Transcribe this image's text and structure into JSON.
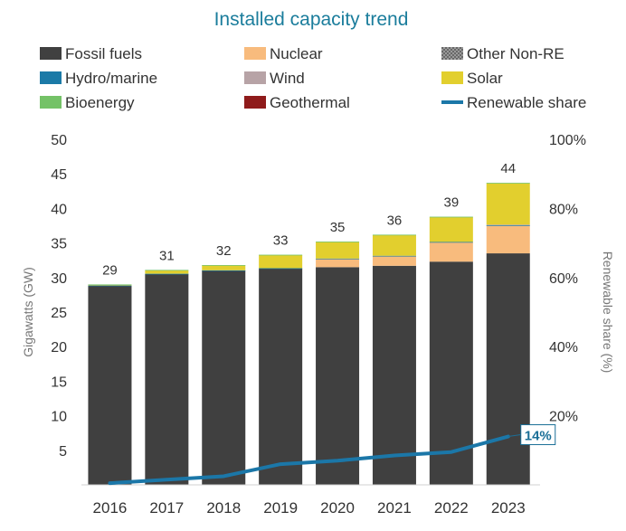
{
  "chart_data": {
    "type": "bar",
    "stacked": true,
    "title": "Installed capacity trend",
    "categories": [
      "2016",
      "2017",
      "2018",
      "2019",
      "2020",
      "2021",
      "2022",
      "2023"
    ],
    "legend": [
      {
        "name": "Fossil fuels",
        "color": "#404040",
        "kind": "box"
      },
      {
        "name": "Nuclear",
        "color": "#f8bb7d",
        "kind": "box"
      },
      {
        "name": "Other Non-RE",
        "color": "#7f7f7f",
        "kind": "hatch"
      },
      {
        "name": "Hydro/marine",
        "color": "#1b7aa7",
        "kind": "box"
      },
      {
        "name": "Wind",
        "color": "#b7a3a6",
        "kind": "box"
      },
      {
        "name": "Solar",
        "color": "#e2cf2e",
        "kind": "box"
      },
      {
        "name": "Bioenergy",
        "color": "#74c267",
        "kind": "box"
      },
      {
        "name": "Geothermal",
        "color": "#8f1b1b",
        "kind": "box"
      },
      {
        "name": "Renewable share",
        "color": "#1b77a8",
        "kind": "line"
      }
    ],
    "series": [
      {
        "name": "Fossil fuels",
        "color": "#404040",
        "values": [
          28.8,
          30.5,
          31.0,
          31.3,
          31.5,
          31.7,
          32.3,
          33.5
        ]
      },
      {
        "name": "Nuclear",
        "color": "#f8bb7d",
        "values": [
          0,
          0,
          0,
          0,
          1.2,
          1.4,
          2.8,
          4.0
        ]
      },
      {
        "name": "Other Non-RE",
        "color": "#7f7f7f",
        "values": [
          0,
          0,
          0,
          0,
          0,
          0,
          0,
          0
        ]
      },
      {
        "name": "Hydro/marine",
        "color": "#1b7aa7",
        "values": [
          0.05,
          0.05,
          0.05,
          0.05,
          0.05,
          0.05,
          0.05,
          0.05
        ]
      },
      {
        "name": "Wind",
        "color": "#b7a3a6",
        "values": [
          0,
          0,
          0,
          0,
          0,
          0,
          0,
          0.1
        ]
      },
      {
        "name": "Solar",
        "color": "#e2cf2e",
        "values": [
          0.1,
          0.5,
          0.7,
          1.9,
          2.4,
          3.0,
          3.6,
          6.0
        ]
      },
      {
        "name": "Bioenergy",
        "color": "#74c267",
        "values": [
          0.05,
          0.05,
          0.05,
          0.05,
          0.05,
          0.05,
          0.05,
          0.05
        ]
      },
      {
        "name": "Geothermal",
        "color": "#8f1b1b",
        "values": [
          0,
          0,
          0,
          0,
          0,
          0,
          0,
          0
        ]
      }
    ],
    "totals": [
      "29",
      "31",
      "32",
      "33",
      "35",
      "36",
      "39",
      "44"
    ],
    "renewable_share": {
      "name": "Renewable share",
      "color": "#1b77a8",
      "values": [
        0.5,
        1.5,
        2.5,
        6.0,
        7.0,
        8.5,
        9.5,
        14.0
      ]
    },
    "end_label": "14%",
    "y_left": {
      "label": "Gigawatts (GW)",
      "min": 0,
      "max": 50,
      "ticks": [
        "5",
        "10",
        "15",
        "20",
        "25",
        "30",
        "35",
        "40",
        "45",
        "50"
      ]
    },
    "y_right": {
      "label": "Renewable share (%)",
      "min": 0,
      "max": 100,
      "ticks": [
        "20%",
        "40%",
        "60%",
        "80%",
        "100%"
      ]
    },
    "grid": false,
    "legend_position": "top"
  }
}
